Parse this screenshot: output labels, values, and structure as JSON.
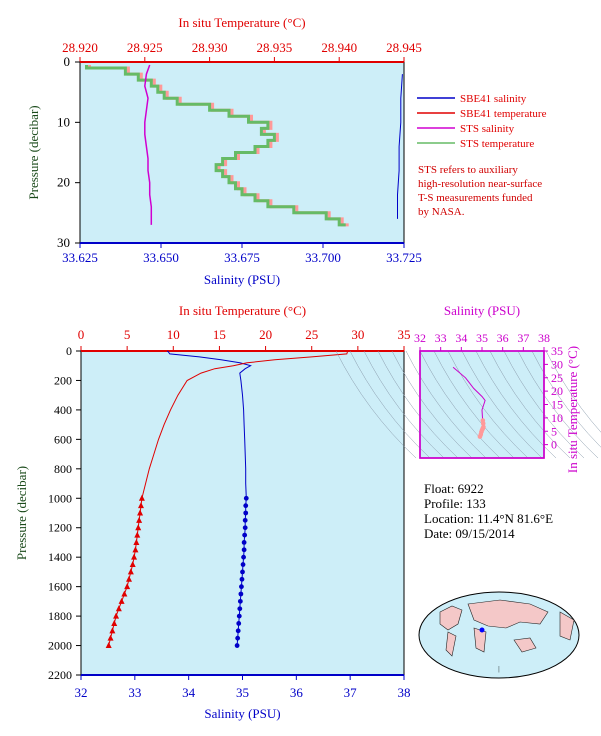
{
  "colors": {
    "plot_bg": "#cdeef8",
    "salinity": "#0000c8",
    "temperature": "#e00000",
    "sts_salinity": "#d000d0",
    "sts_temperature": "#66bb66",
    "sts_temperature_alt": "#ff9999",
    "pressure_axis": "#1a4a1a",
    "ts_axis": "#cc00cc"
  },
  "chart_data": [
    {
      "id": "upper-profile",
      "type": "line",
      "top_title": "In situ Temperature (°C)",
      "xlabel": "Salinity (PSU)",
      "ylabel": "Pressure (decibar)",
      "salinity_range": [
        33.625,
        33.725
      ],
      "temperature_range": [
        28.92,
        28.945
      ],
      "pressure_range": [
        0,
        30
      ],
      "salinity_ticks": [
        "33.625",
        "33.650",
        "33.675",
        "33.700",
        "33.725"
      ],
      "temperature_ticks": [
        "28.920",
        "28.925",
        "28.930",
        "28.935",
        "28.940",
        "28.945"
      ],
      "pressure_ticks": [
        "0",
        "10",
        "20",
        "30"
      ],
      "legend": [
        "SBE41 salinity",
        "SBE41 temperature",
        "STS salinity",
        "STS temperature"
      ],
      "note": [
        "STS refers to auxiliary",
        "high-resolution near-surface",
        "T-S measurements funded",
        "by NASA."
      ],
      "sts_temperature": {
        "p": [
          0.5,
          1,
          2,
          3,
          4,
          5,
          6,
          7,
          8,
          9,
          10,
          11,
          12,
          13,
          14,
          15,
          16,
          17,
          18,
          19,
          20,
          21,
          22,
          23,
          24,
          25,
          26,
          27
        ],
        "t": [
          28.9205,
          28.9235,
          28.9245,
          28.9255,
          28.926,
          28.9265,
          28.9275,
          28.93,
          28.9315,
          28.933,
          28.9345,
          28.934,
          28.935,
          28.9345,
          28.9335,
          28.932,
          28.931,
          28.9305,
          28.931,
          28.9315,
          28.932,
          28.9325,
          28.9335,
          28.9345,
          28.9365,
          28.939,
          28.94,
          28.9405
        ]
      },
      "sts_salinity": {
        "p": [
          0.5,
          2,
          4,
          6,
          8,
          10,
          12,
          14,
          16,
          18,
          20,
          22,
          24,
          26,
          27
        ],
        "s": [
          33.6465,
          33.6455,
          33.645,
          33.646,
          33.6455,
          33.645,
          33.645,
          33.6455,
          33.646,
          33.646,
          33.6465,
          33.6465,
          33.647,
          33.647,
          33.647
        ]
      },
      "sbe41_salinity": {
        "p": [
          2,
          6,
          10,
          14,
          18,
          22,
          26
        ],
        "s": [
          33.7245,
          33.724,
          33.724,
          33.7235,
          33.7235,
          33.723,
          33.723
        ]
      }
    },
    {
      "id": "lower-profile",
      "type": "line",
      "top_title": "In situ Temperature (°C)",
      "xlabel": "Salinity (PSU)",
      "ylabel": "Pressure (decibar)",
      "salinity_range": [
        32,
        38
      ],
      "temperature_range": [
        0,
        35
      ],
      "pressure_range": [
        0,
        2200
      ],
      "salinity_ticks": [
        "32",
        "33",
        "34",
        "35",
        "36",
        "37",
        "38"
      ],
      "temperature_ticks": [
        "0",
        "5",
        "10",
        "15",
        "20",
        "25",
        "30",
        "35"
      ],
      "pressure_ticks": [
        "0",
        "200",
        "400",
        "600",
        "800",
        "1000",
        "1200",
        "1400",
        "1600",
        "1800",
        "2000",
        "2200"
      ],
      "salinity": {
        "p": [
          0,
          5,
          20,
          40,
          60,
          80,
          100,
          120,
          150,
          200,
          300,
          400,
          500,
          600,
          700,
          800,
          900,
          1000,
          1050,
          1100,
          1150,
          1200,
          1250,
          1300,
          1350,
          1400,
          1450,
          1500,
          1550,
          1600,
          1650,
          1700,
          1750,
          1800,
          1850,
          1900,
          1950,
          2000
        ],
        "s": [
          33.6,
          33.62,
          33.65,
          34.2,
          34.6,
          34.95,
          35.15,
          35.05,
          34.95,
          34.97,
          35.0,
          35.02,
          35.03,
          35.04,
          35.05,
          35.06,
          35.06,
          35.07,
          35.06,
          35.06,
          35.05,
          35.05,
          35.04,
          35.03,
          35.03,
          35.02,
          35.01,
          35.0,
          34.99,
          34.98,
          34.97,
          34.96,
          34.95,
          34.94,
          34.93,
          34.92,
          34.91,
          34.9
        ]
      },
      "temperature": {
        "p": [
          0,
          20,
          40,
          60,
          80,
          100,
          120,
          150,
          200,
          300,
          400,
          500,
          600,
          700,
          800,
          900,
          1000,
          1050,
          1100,
          1150,
          1200,
          1250,
          1300,
          1350,
          1400,
          1450,
          1500,
          1550,
          1600,
          1650,
          1700,
          1750,
          1800,
          1850,
          1900,
          1950,
          2000
        ],
        "t": [
          28.9,
          28.8,
          25.0,
          21.0,
          18.0,
          16.5,
          14.5,
          13.0,
          11.5,
          10.5,
          9.7,
          9.0,
          8.4,
          7.9,
          7.4,
          7.0,
          6.6,
          6.5,
          6.4,
          6.3,
          6.2,
          6.1,
          6.0,
          5.9,
          5.75,
          5.6,
          5.4,
          5.2,
          5.0,
          4.7,
          4.4,
          4.1,
          3.8,
          3.6,
          3.4,
          3.2,
          3.0
        ]
      }
    },
    {
      "id": "ts-diagram",
      "type": "scatter",
      "top_title": "Salinity (PSU)",
      "ylabel": "In situ Temperature (°C)",
      "salinity_range": [
        32,
        38
      ],
      "temperature_range": [
        -5,
        35
      ],
      "salinity_ticks": [
        "32",
        "33",
        "34",
        "35",
        "36",
        "37",
        "38"
      ],
      "temperature_ticks": [
        "0",
        "5",
        "10",
        "15",
        "20",
        "25",
        "30",
        "35"
      ],
      "points": {
        "s": [
          33.6,
          34.2,
          34.6,
          35.0,
          35.15,
          35.0,
          35.02,
          35.04,
          35.06,
          35.07,
          35.05,
          35.03,
          35.0,
          34.97,
          34.94,
          34.9
        ],
        "t": [
          28.9,
          25.0,
          21.0,
          18.0,
          16.5,
          13.0,
          10.5,
          9.0,
          7.9,
          6.6,
          6.2,
          5.9,
          5.4,
          4.7,
          3.8,
          3.0
        ]
      }
    }
  ],
  "float_info": {
    "float": "Float:  6922",
    "profile": "Profile:  133",
    "location": "Location:  11.4°N  81.6°E",
    "date": "Date:  09/15/2014"
  }
}
